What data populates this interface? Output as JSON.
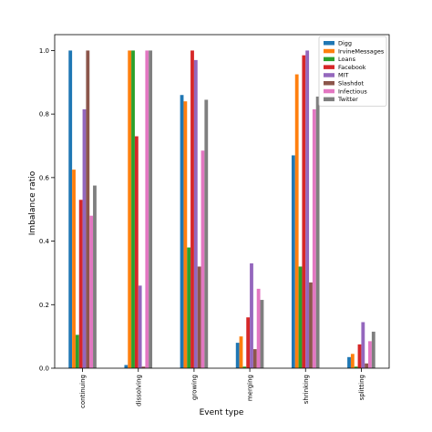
{
  "chart_data": {
    "type": "bar",
    "xlabel": "Event type",
    "ylabel": "Imbalance ratio",
    "ylim": [
      0,
      1.05
    ],
    "yticks": [
      "0.0",
      "0.2",
      "0.4",
      "0.6",
      "0.8",
      "1.0"
    ],
    "legend_position": "top-right",
    "grid": false,
    "categories": [
      "continuing",
      "dissolving",
      "growing",
      "merging",
      "shrinking",
      "splitting"
    ],
    "series": [
      {
        "name": "Digg",
        "color": "#1f77b4",
        "values": [
          1.0,
          0.01,
          0.86,
          0.08,
          0.67,
          0.035
        ]
      },
      {
        "name": "IrvineMessages",
        "color": "#ff7f0e",
        "values": [
          0.625,
          1.0,
          0.84,
          0.1,
          0.925,
          0.045
        ]
      },
      {
        "name": "Loans",
        "color": "#2ca02c",
        "values": [
          0.105,
          1.0,
          0.38,
          0.005,
          0.32,
          0.005
        ]
      },
      {
        "name": "Facebook",
        "color": "#d62728",
        "values": [
          0.53,
          0.73,
          1.0,
          0.16,
          0.985,
          0.075
        ]
      },
      {
        "name": "MIT",
        "color": "#9467bd",
        "values": [
          0.815,
          0.26,
          0.97,
          0.33,
          1.0,
          0.145
        ]
      },
      {
        "name": "Slashdot",
        "color": "#8c564b",
        "values": [
          1.0,
          0.005,
          0.32,
          0.06,
          0.27,
          0.015
        ]
      },
      {
        "name": "Infectious",
        "color": "#e377c2",
        "values": [
          0.48,
          1.0,
          0.685,
          0.25,
          0.815,
          0.085
        ]
      },
      {
        "name": "Twitter",
        "color": "#7f7f7f",
        "values": [
          0.575,
          1.0,
          0.845,
          0.215,
          0.855,
          0.115
        ]
      }
    ]
  }
}
